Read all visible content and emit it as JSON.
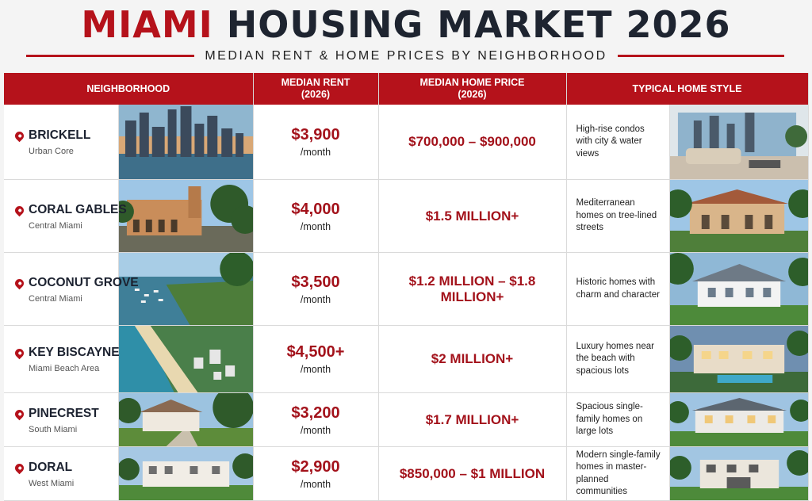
{
  "header": {
    "title_red": "MIAMI",
    "title_rest": " HOUSING MARKET 2026",
    "subtitle": "MEDIAN RENT & HOME PRICES BY NEIGHBORHOOD"
  },
  "columns": {
    "neighborhood": "NEIGHBORHOOD",
    "rent_line1": "MEDIAN RENT",
    "rent_line2": "(2026)",
    "price_line1": "MEDIAN HOME PRICE",
    "price_line2": "(2026)",
    "style": "TYPICAL HOME STYLE"
  },
  "rows": [
    {
      "name": "BRICKELL",
      "area": "Urban Core",
      "rent": "$3,900",
      "per": "/month",
      "price": "$700,000 – $900,000",
      "style": "High-rise condos with city & water views"
    },
    {
      "name": "CORAL GABLES",
      "area": "Central Miami",
      "rent": "$4,000",
      "per": "/month",
      "price": "$1.5 MILLION+",
      "style": "Mediterranean homes on tree-lined streets"
    },
    {
      "name": "COCONUT GROVE",
      "area": "Central Miami",
      "rent": "$3,500",
      "per": "/month",
      "price": "$1.2 MILLION – $1.8 MILLION+",
      "style": "Historic homes with charm and character"
    },
    {
      "name": "KEY BISCAYNE",
      "area": "Miami Beach Area",
      "rent": "$4,500+",
      "per": "/month",
      "price": "$2 MILLION+",
      "style": "Luxury homes near the beach with spacious lots"
    },
    {
      "name": "PINECREST",
      "area": "South Miami",
      "rent": "$3,200",
      "per": "/month",
      "price": "$1.7 MILLION+",
      "style": "Spacious single-family homes on large lots"
    },
    {
      "name": "DORAL",
      "area": "West Miami",
      "rent": "$2,900",
      "per": "/month",
      "price": "$850,000 – $1 MILLION",
      "style": "Modern single-family homes in master-planned communities"
    }
  ]
}
